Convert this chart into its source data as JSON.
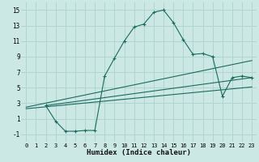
{
  "xlabel": "Humidex (Indice chaleur)",
  "bg_color": "#cce8e5",
  "grid_color": "#b0d4d0",
  "line_color": "#1a6b5e",
  "xlim": [
    -0.5,
    23.5
  ],
  "ylim": [
    -2,
    16
  ],
  "xticks": [
    0,
    1,
    2,
    3,
    4,
    5,
    6,
    7,
    8,
    9,
    10,
    11,
    12,
    13,
    14,
    15,
    16,
    17,
    18,
    19,
    20,
    21,
    22,
    23
  ],
  "yticks": [
    -1,
    1,
    3,
    5,
    7,
    9,
    11,
    13,
    15
  ],
  "series1_x": [
    2,
    3,
    4,
    5,
    6,
    7,
    8,
    9,
    10,
    11,
    12,
    13,
    14,
    15,
    16,
    17,
    18,
    19,
    20,
    21,
    22,
    23
  ],
  "series1_y": [
    2.7,
    0.7,
    -0.6,
    -0.6,
    -0.5,
    -0.5,
    6.5,
    8.8,
    11.0,
    12.8,
    13.2,
    14.7,
    15.0,
    13.4,
    11.2,
    9.3,
    9.4,
    9.0,
    3.9,
    6.3,
    6.5,
    6.3
  ],
  "series2_x": [
    2,
    23
  ],
  "series2_y": [
    2.7,
    6.3
  ],
  "series3_x": [
    0,
    23
  ],
  "series3_y": [
    2.5,
    8.5
  ],
  "series4_x": [
    0,
    23
  ],
  "series4_y": [
    2.3,
    5.1
  ]
}
